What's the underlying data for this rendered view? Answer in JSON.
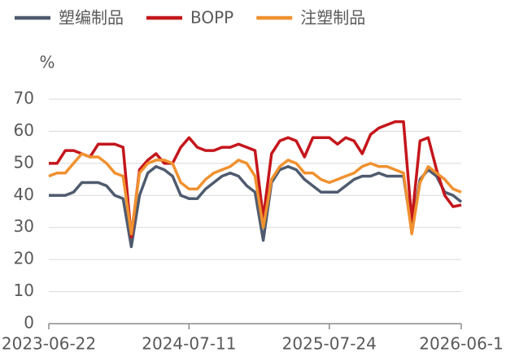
{
  "chart_data": {
    "type": "line",
    "y_label": "%",
    "categories": [
      "2023-06-22",
      null,
      null,
      null,
      null,
      null,
      null,
      null,
      null,
      null,
      null,
      null,
      null,
      null,
      null,
      null,
      null,
      "2024-07-11",
      null,
      null,
      null,
      null,
      null,
      null,
      null,
      null,
      null,
      null,
      null,
      null,
      null,
      null,
      null,
      null,
      "2025-07-24",
      null,
      null,
      null,
      null,
      null,
      null,
      null,
      null,
      null,
      null,
      null,
      null,
      null,
      null,
      null,
      "2026-06-1"
    ],
    "series": [
      {
        "name": "塑编制品",
        "color": "#4f5b6e",
        "values": [
          40,
          40,
          40,
          41,
          44,
          44,
          44,
          43,
          40,
          39,
          24,
          40,
          47,
          49,
          48,
          46,
          40,
          39,
          39,
          42,
          44,
          46,
          47,
          46,
          43,
          41,
          26,
          44,
          48,
          49,
          48,
          45,
          43,
          41,
          41,
          41,
          43,
          45,
          46,
          46,
          47,
          46,
          46,
          46,
          29,
          45,
          48,
          46,
          41,
          40,
          38
        ]
      },
      {
        "name": "BOPP",
        "color": "#c4161c",
        "values": [
          50,
          50,
          54,
          54,
          53,
          52,
          56,
          56,
          56,
          55,
          27,
          48,
          51,
          53,
          50,
          50,
          55,
          58,
          55,
          54,
          54,
          55,
          55,
          56,
          55,
          54,
          33,
          53,
          57,
          58,
          57,
          52,
          58,
          58,
          58,
          56,
          58,
          57,
          53,
          59,
          61,
          62,
          63,
          63,
          32,
          57,
          58,
          48,
          40,
          36.5,
          37
        ]
      },
      {
        "name": "注塑制品",
        "color": "#f0912f",
        "values": [
          46,
          47,
          47,
          50,
          53,
          52,
          52,
          50,
          47,
          46,
          28,
          47,
          50,
          51,
          51,
          50,
          44,
          42,
          42,
          45,
          47,
          48,
          49,
          51,
          50,
          46,
          30,
          45,
          49,
          51,
          50,
          47,
          47,
          45,
          44,
          45,
          46,
          47,
          49,
          50,
          49,
          49,
          48,
          47,
          28,
          44,
          49,
          47,
          45,
          42,
          41
        ]
      }
    ],
    "ylim": [
      0,
      70
    ],
    "yticks": [
      0,
      10,
      20,
      30,
      40,
      50,
      60,
      70
    ],
    "grid": true,
    "legend": "top"
  }
}
